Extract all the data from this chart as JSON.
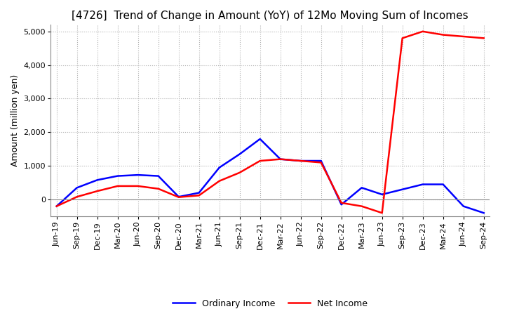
{
  "title": "[4726]  Trend of Change in Amount (YoY) of 12Mo Moving Sum of Incomes",
  "ylabel": "Amount (million yen)",
  "ylim": [
    -500,
    5200
  ],
  "yticks": [
    0,
    1000,
    2000,
    3000,
    4000,
    5000
  ],
  "x_labels": [
    "Jun-19",
    "Sep-19",
    "Dec-19",
    "Mar-20",
    "Jun-20",
    "Sep-20",
    "Dec-20",
    "Mar-21",
    "Jun-21",
    "Sep-21",
    "Dec-21",
    "Mar-22",
    "Jun-22",
    "Sep-22",
    "Dec-22",
    "Mar-23",
    "Jun-23",
    "Sep-23",
    "Dec-23",
    "Mar-24",
    "Jun-24",
    "Sep-24"
  ],
  "ordinary_income": [
    -200,
    350,
    580,
    700,
    730,
    700,
    80,
    200,
    950,
    1350,
    1800,
    1200,
    1150,
    1150,
    -150,
    350,
    150,
    300,
    450,
    450,
    -200,
    -400
  ],
  "net_income": [
    -200,
    80,
    250,
    400,
    400,
    320,
    70,
    120,
    550,
    800,
    1150,
    1200,
    1150,
    1100,
    -100,
    -200,
    -400,
    4800,
    5000,
    4900,
    4850,
    4800
  ],
  "ordinary_color": "#0000ff",
  "net_color": "#ff0000",
  "grid_color": "#b0b0b0",
  "background_color": "#ffffff",
  "title_fontsize": 11,
  "axis_label_fontsize": 9,
  "tick_fontsize": 8,
  "legend_fontsize": 9
}
